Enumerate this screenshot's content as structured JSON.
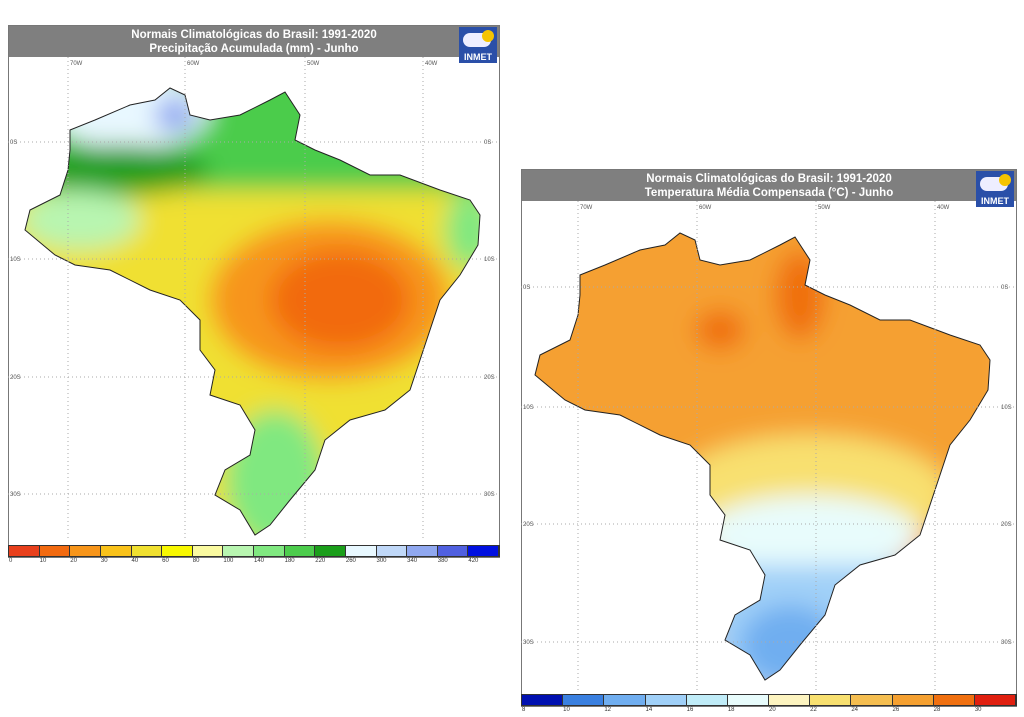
{
  "maps": [
    {
      "title": "Normais Climatológicas do Brasil: 1991-2020",
      "subtitle": "Precipitação Acumulada (mm) - Junho",
      "logo": "INMET",
      "lon_labels": [
        "70W",
        "60W",
        "50W",
        "40W"
      ],
      "lat_labels": [
        "0S",
        "10S",
        "20S",
        "30S"
      ],
      "colorbar": {
        "labels": [
          "0",
          "10",
          "20",
          "30",
          "40",
          "60",
          "80",
          "100",
          "140",
          "180",
          "220",
          "260",
          "300",
          "340",
          "380",
          "420"
        ],
        "colors": [
          "#e8401c",
          "#f26a10",
          "#f7951a",
          "#f9c21a",
          "#f0e030",
          "#f8f800",
          "#fafaa0",
          "#b8f5b0",
          "#80e880",
          "#4ccc4c",
          "#1a9e1a",
          "#e8f8ff",
          "#c0d8f8",
          "#90a8f0",
          "#5060e0",
          "#0010e0"
        ]
      }
    },
    {
      "title": "Normais Climatológicas do Brasil: 1991-2020",
      "subtitle": "Temperatura Média Compensada (°C) - Junho",
      "logo": "INMET",
      "lon_labels": [
        "70W",
        "60W",
        "50W",
        "40W"
      ],
      "lat_labels": [
        "0S",
        "10S",
        "20S",
        "30S"
      ],
      "colorbar": {
        "labels": [
          "8",
          "10",
          "12",
          "14",
          "16",
          "18",
          "20",
          "22",
          "24",
          "26",
          "28",
          "30"
        ],
        "colors": [
          "#0010b0",
          "#3a80e0",
          "#70aef0",
          "#a0d0f8",
          "#c0ecf8",
          "#e8fcfc",
          "#fdf4c0",
          "#f8e070",
          "#f5be50",
          "#f5a030",
          "#f07010",
          "#e02010"
        ]
      }
    }
  ]
}
